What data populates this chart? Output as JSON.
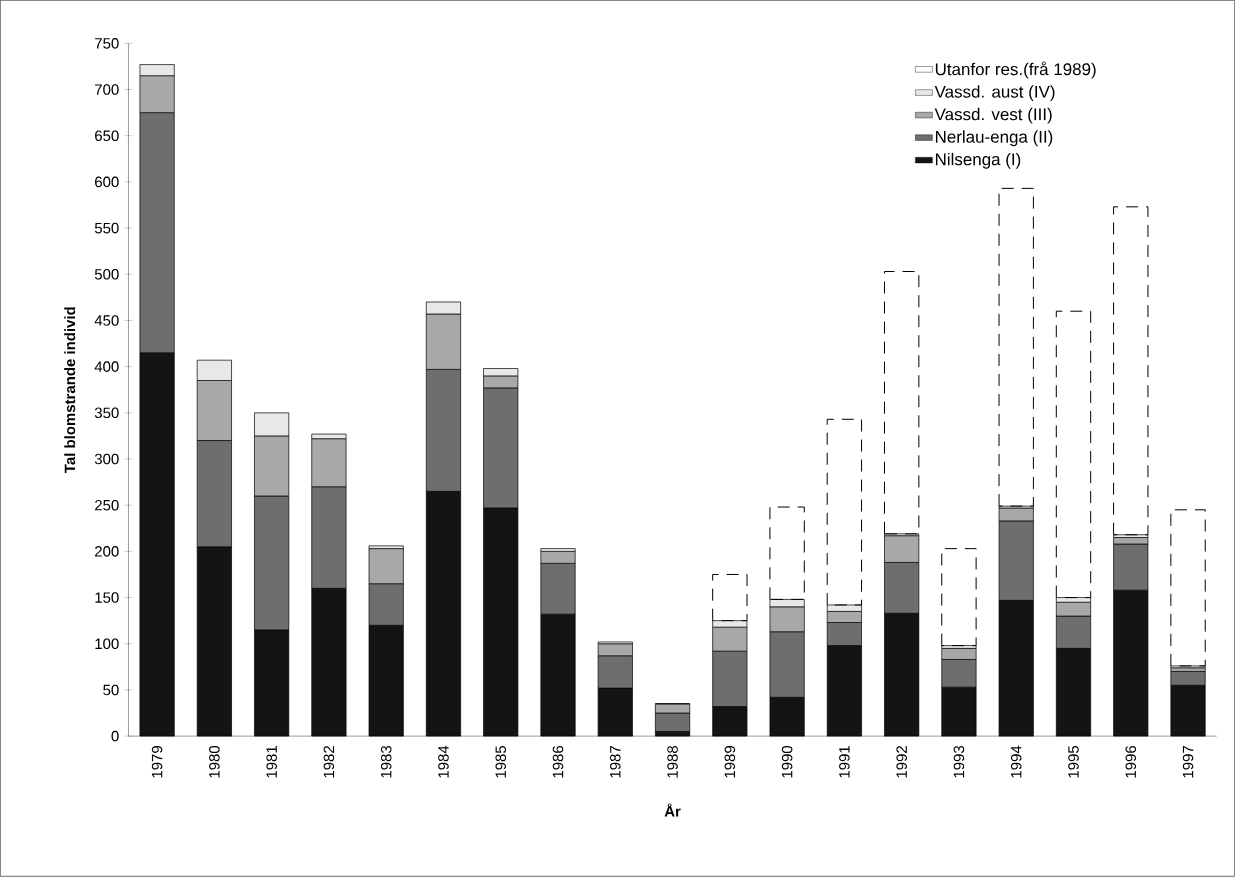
{
  "chart_data": {
    "type": "bar",
    "stacked": true,
    "xlabel": "År",
    "ylabel": "Tal blomstrande individ",
    "categories": [
      "1979",
      "1980",
      "1981",
      "1982",
      "1983",
      "1984",
      "1985",
      "1986",
      "1987",
      "1988",
      "1989",
      "1990",
      "1991",
      "1992",
      "1993",
      "1994",
      "1995",
      "1996",
      "1997"
    ],
    "series": [
      {
        "name": "Nilsenga (I)",
        "color": "#141414",
        "values": [
          415,
          205,
          115,
          160,
          120,
          265,
          247,
          132,
          52,
          5,
          32,
          42,
          98,
          133,
          53,
          147,
          95,
          158,
          55
        ]
      },
      {
        "name": "Nerlau-enga (II)",
        "color": "#6e6e6e",
        "values": [
          260,
          115,
          145,
          110,
          45,
          132,
          130,
          55,
          35,
          20,
          60,
          71,
          25,
          55,
          30,
          86,
          35,
          50,
          15
        ]
      },
      {
        "name": "Vassd. vest (III)",
        "color": "#a8a8a8",
        "values": [
          40,
          65,
          65,
          52,
          38,
          60,
          13,
          13,
          13,
          10,
          26,
          27,
          12,
          29,
          12,
          14,
          15,
          7,
          4
        ]
      },
      {
        "name": "Vassd. aust (IV)",
        "color": "#e8e8e8",
        "values": [
          12,
          22,
          25,
          5,
          3,
          13,
          8,
          3,
          2,
          0,
          7,
          8,
          7,
          2,
          3,
          2,
          5,
          3,
          2
        ]
      },
      {
        "name": "Utanfor res.(frå 1989)",
        "color": "#000000",
        "line_style": "dashed",
        "values": [
          null,
          null,
          null,
          null,
          null,
          null,
          null,
          null,
          null,
          null,
          50,
          100,
          201,
          284,
          105,
          344,
          310,
          355,
          169
        ]
      }
    ],
    "ylim": [
      0,
      750
    ],
    "yticks": [
      0,
      50,
      100,
      150,
      200,
      250,
      300,
      350,
      400,
      450,
      500,
      550,
      600,
      650,
      700,
      750
    ],
    "legend": "top right"
  }
}
